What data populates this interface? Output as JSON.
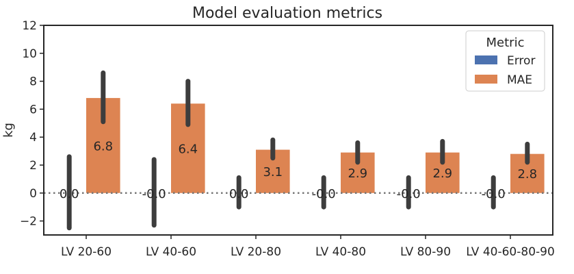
{
  "chart_data": {
    "type": "bar",
    "title": "Model evaluation metrics",
    "xlabel": "",
    "ylabel": "kg",
    "ylim": [
      -3,
      12
    ],
    "yticks": [
      -2,
      0,
      2,
      4,
      6,
      8,
      10,
      12
    ],
    "ytick_labels": [
      "−2",
      "0",
      "2",
      "4",
      "6",
      "8",
      "10",
      "12"
    ],
    "categories": [
      "LV 20-60",
      "LV 40-60",
      "LV 20-80",
      "LV 40-80",
      "LV 80-90",
      "LV 40-60-80-90"
    ],
    "series": [
      {
        "name": "Error",
        "color": "#4c72b0",
        "values": [
          0.0,
          -0.0,
          0.0,
          -0.0,
          -0.0,
          -0.0
        ],
        "labels": [
          "0.0",
          "-0.0",
          "0.0",
          "-0.0",
          "-0.0",
          "-0.0"
        ],
        "err_low": [
          -2.5,
          -2.3,
          -1.0,
          -1.0,
          -1.0,
          -1.0
        ],
        "err_high": [
          2.6,
          2.4,
          1.1,
          1.1,
          1.1,
          1.1
        ]
      },
      {
        "name": "MAE",
        "color": "#dd8452",
        "values": [
          6.8,
          6.4,
          3.1,
          2.9,
          2.9,
          2.8
        ],
        "labels": [
          "6.8",
          "6.4",
          "3.1",
          "2.9",
          "2.9",
          "2.8"
        ],
        "err_low": [
          5.1,
          4.9,
          2.5,
          2.2,
          2.2,
          2.2
        ],
        "err_high": [
          8.6,
          8.0,
          3.8,
          3.6,
          3.7,
          3.5
        ]
      }
    ],
    "zero_line": {
      "value": 0,
      "style": "dotted"
    },
    "grid": false,
    "legend": {
      "title": "Metric",
      "position": "upper right"
    }
  }
}
